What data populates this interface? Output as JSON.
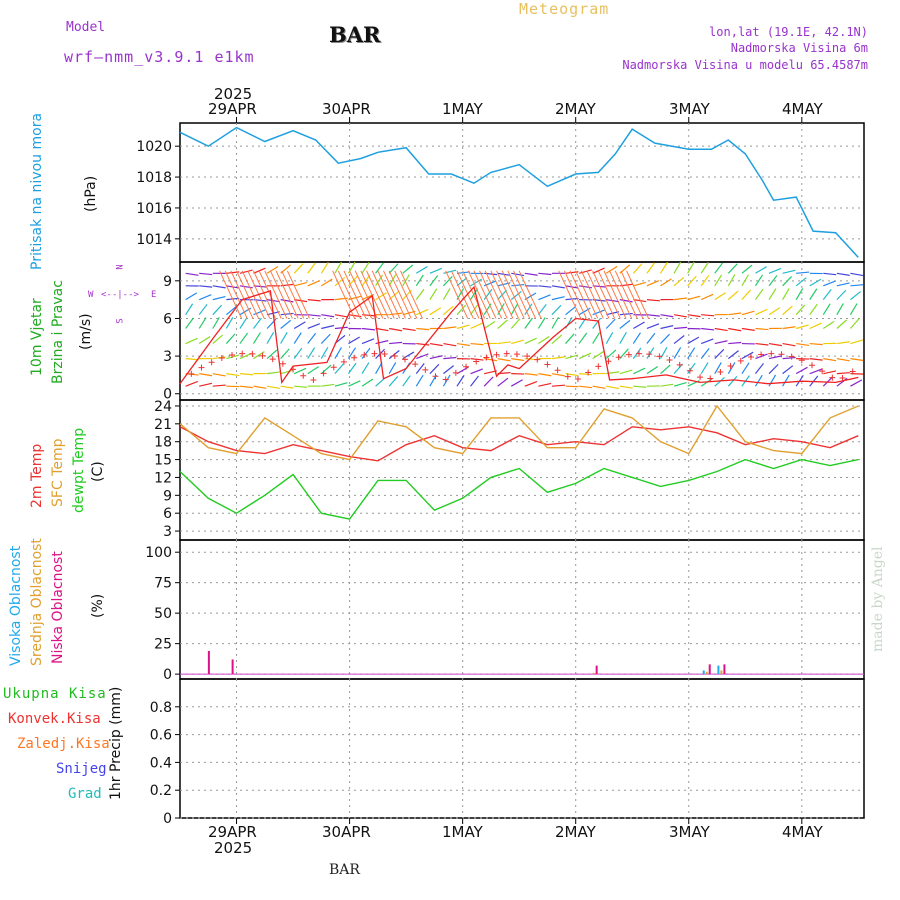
{
  "header": {
    "app_title": "Meteogram",
    "model_label": "Model",
    "model_name": "wrf–nmm_v3.9.1  e1km",
    "station": "BAR",
    "lonlat": "lon,lat (19.1E, 42.1N)",
    "elevation": "Nadmorska Visina 6m",
    "model_elevation": "Nadmorska Visina u modelu 65.4587m",
    "credit": "made by Angel",
    "footer_station": "BAR"
  },
  "axis": {
    "year": "2025",
    "days": [
      "29APR",
      "30APR",
      "1MAY",
      "2MAY",
      "3MAY",
      "4MAY"
    ]
  },
  "colors": {
    "pressure": "#1ea0e0",
    "temp2m": "#ee3333",
    "sfc": "#e0a030",
    "dewpt": "#22cc22",
    "high_cloud": "#22aaee",
    "mid_cloud": "#e0a030",
    "low_cloud": "#dd1188",
    "wind_label": "#22aa22",
    "model": "#9933cc",
    "meteogram": "#e8c060"
  },
  "panels": {
    "pressure": {
      "label": "Pritisak na nivou mora",
      "unit": "(hPa)"
    },
    "wind": {
      "label1": "10m Vjetar",
      "label2": "Brzina i Pravac",
      "unit": "(m/s)",
      "compass_n": "N",
      "compass_s": "S",
      "compass_w": "W",
      "compass_e": "E"
    },
    "temp": {
      "label1": "2m Temp",
      "label2": "SFC Temp",
      "label3": "dewpt Temp",
      "unit": "(C)"
    },
    "cloud": {
      "label1": "Visoka Oblacnost",
      "label2": "Srednja Oblacnost",
      "label3": "Niska Oblacnost",
      "unit": "(%)"
    },
    "precip": {
      "label": "1hr Precip (mm)",
      "legend": [
        "Ukupna Kisa",
        "Konvek.Kisa",
        "Zaledj.Kisa",
        "Snijeg",
        "Grad"
      ],
      "legend_colors": [
        "#22bb22",
        "#ee3333",
        "#ff7722",
        "#4444ee",
        "#22bbbb"
      ]
    }
  },
  "chart_data": [
    {
      "type": "line",
      "ylabel": "(hPa)",
      "ylim": [
        1012.5,
        1021.5
      ],
      "yticks": [
        1014,
        1016,
        1018,
        1020
      ],
      "x_days": [
        0,
        0.25,
        0.5,
        0.75,
        1.0,
        1.2,
        1.4,
        1.6,
        1.75,
        2.0,
        2.2,
        2.4,
        2.6,
        2.75,
        3.0,
        3.25,
        3.5,
        3.7,
        3.85,
        4.0,
        4.2,
        4.5,
        4.7,
        4.85,
        5.0,
        5.15,
        5.25,
        5.45,
        5.6,
        5.8,
        6.0
      ],
      "series": [
        {
          "values": [
            1020.9,
            1020.0,
            1021.2,
            1020.3,
            1021.0,
            1020.4,
            1018.9,
            1019.2,
            1019.6,
            1019.9,
            1018.2,
            1018.2,
            1017.6,
            1018.3,
            1018.8,
            1017.4,
            1018.2,
            1018.3,
            1019.5,
            1021.1,
            1020.2,
            1019.8,
            1019.8,
            1020.4,
            1019.5,
            1017.8,
            1016.5,
            1016.7,
            1014.5,
            1014.4,
            1012.8
          ]
        }
      ],
      "grid": true
    },
    {
      "type": "line",
      "ylabel": "(m/s)",
      "ylim": [
        -0.5,
        10.5
      ],
      "yticks": [
        0,
        3,
        6,
        9
      ],
      "x_days": [
        0,
        0.3,
        0.55,
        0.8,
        0.9,
        1.0,
        1.3,
        1.5,
        1.7,
        1.8,
        2.0,
        2.4,
        2.6,
        2.8,
        2.9,
        3.0,
        3.3,
        3.5,
        3.7,
        3.8,
        4.0,
        4.3,
        4.6,
        4.9,
        5.2,
        5.5,
        5.8,
        6.0
      ],
      "series": [
        {
          "values": [
            0.8,
            4.5,
            7.5,
            8.2,
            0.9,
            2.2,
            2.5,
            6.5,
            7.8,
            1.2,
            2.0,
            6.5,
            8.5,
            1.4,
            2.3,
            2.0,
            4.5,
            6.0,
            5.8,
            1.1,
            1.2,
            1.5,
            0.9,
            1.1,
            0.8,
            1.0,
            0.9,
            1.3
          ]
        }
      ],
      "grid": true
    },
    {
      "type": "line",
      "ylabel": "(C)",
      "ylim": [
        1.5,
        25
      ],
      "yticks": [
        3,
        6,
        9,
        12,
        15,
        18,
        21,
        24
      ],
      "x_days": [
        0,
        0.25,
        0.5,
        0.75,
        1.0,
        1.25,
        1.5,
        1.75,
        2.0,
        2.25,
        2.5,
        2.75,
        3.0,
        3.25,
        3.5,
        3.75,
        4.0,
        4.25,
        4.5,
        4.75,
        5.0,
        5.25,
        5.5,
        5.75,
        6.0
      ],
      "series": [
        {
          "name": "2m Temp",
          "values": [
            20.5,
            18.0,
            16.5,
            16.0,
            17.5,
            16.5,
            15.5,
            14.8,
            17.5,
            19.0,
            17.0,
            16.5,
            19.0,
            17.5,
            18.0,
            17.5,
            20.5,
            20.0,
            20.5,
            19.5,
            17.5,
            18.5,
            18.0,
            17.0,
            19.0
          ]
        },
        {
          "name": "SFC Temp",
          "values": [
            21.0,
            17.0,
            16.0,
            22.0,
            19.0,
            16.0,
            15.0,
            21.5,
            20.5,
            17.0,
            16.0,
            22.0,
            22.0,
            17.0,
            17.0,
            23.5,
            22.0,
            18.0,
            16.0,
            24.0,
            18.0,
            16.5,
            16.0,
            22.0,
            24.0
          ]
        },
        {
          "name": "dewpt Temp",
          "values": [
            13.0,
            8.5,
            6.0,
            9.0,
            12.5,
            6.0,
            5.0,
            11.5,
            11.5,
            6.5,
            8.5,
            12.0,
            13.5,
            9.5,
            11.0,
            13.5,
            12.0,
            10.5,
            11.5,
            13.0,
            15.0,
            13.5,
            15.0,
            14.0,
            15.0
          ]
        }
      ],
      "grid": true
    },
    {
      "type": "bar",
      "ylabel": "(%)",
      "ylim": [
        -4,
        110
      ],
      "yticks": [
        0,
        25,
        50,
        75,
        100
      ],
      "bars": [
        {
          "day": 0.22,
          "values": [
            0,
            0,
            19
          ]
        },
        {
          "day": 0.43,
          "values": [
            0,
            0,
            12
          ]
        },
        {
          "day": 3.65,
          "values": [
            0,
            1,
            7
          ]
        },
        {
          "day": 4.65,
          "values": [
            3,
            2,
            8
          ]
        },
        {
          "day": 4.78,
          "values": [
            7,
            3,
            8
          ]
        }
      ],
      "series_names": [
        "Visoka Oblacnost",
        "Srednja Oblacnost",
        "Niska Oblacnost"
      ],
      "grid": true
    },
    {
      "type": "bar",
      "ylabel": "1hr Precip (mm)",
      "ylim": [
        0,
        1.0
      ],
      "yticks": [
        0,
        0.2,
        0.4,
        0.6,
        0.8
      ],
      "values": [],
      "grid": true
    }
  ]
}
